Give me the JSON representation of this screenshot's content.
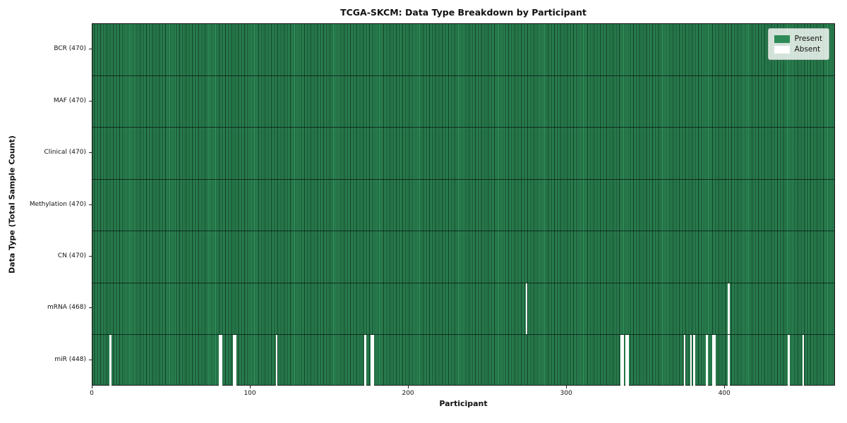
{
  "figure": {
    "title": "TCGA-SKCM: Data Type Breakdown by Participant",
    "xlabel": "Participant",
    "ylabel": "Data Type (Total Sample Count)"
  },
  "legend": {
    "items": [
      {
        "label": "Present",
        "color": "#2e8b57"
      },
      {
        "label": "Absent",
        "color": "#ffffff"
      }
    ]
  },
  "colors": {
    "present": "#2e8b57",
    "absent": "#ffffff",
    "cell_edge": "#082818",
    "row_line": "#1d1d1d",
    "plot_border": "#1c1c1c"
  },
  "x_ticks": [
    0,
    100,
    200,
    300,
    400
  ],
  "chart_data": {
    "type": "heatmap",
    "title": "TCGA-SKCM: Data Type Breakdown by Participant",
    "xlabel": "Participant",
    "ylabel": "Data Type (Total Sample Count)",
    "x_range": [
      0,
      470
    ],
    "total_participants": 470,
    "grid": false,
    "legend_position": "upper right",
    "legend_entries": [
      "Present",
      "Absent"
    ],
    "rows": [
      {
        "label": "BCR (470)",
        "data_type": "BCR",
        "present_count": 470,
        "absent_participants": []
      },
      {
        "label": "MAF (470)",
        "data_type": "MAF",
        "present_count": 470,
        "absent_participants": []
      },
      {
        "label": "Clinical (470)",
        "data_type": "Clinical",
        "present_count": 470,
        "absent_participants": []
      },
      {
        "label": "Methylation (470)",
        "data_type": "Methylation",
        "present_count": 470,
        "absent_participants": []
      },
      {
        "label": "CN (470)",
        "data_type": "CN",
        "present_count": 470,
        "absent_participants": []
      },
      {
        "label": "mRNA (468)",
        "data_type": "mRNA",
        "present_count": 468,
        "absent_participants": [
          274,
          402
        ]
      },
      {
        "label": "miR (448)",
        "data_type": "miR",
        "present_count": 448,
        "absent_participants": [
          11,
          80,
          81,
          89,
          90,
          116,
          172,
          176,
          177,
          334,
          335,
          337,
          338,
          374,
          378,
          380,
          388,
          392,
          393,
          402,
          440,
          449
        ]
      }
    ]
  }
}
